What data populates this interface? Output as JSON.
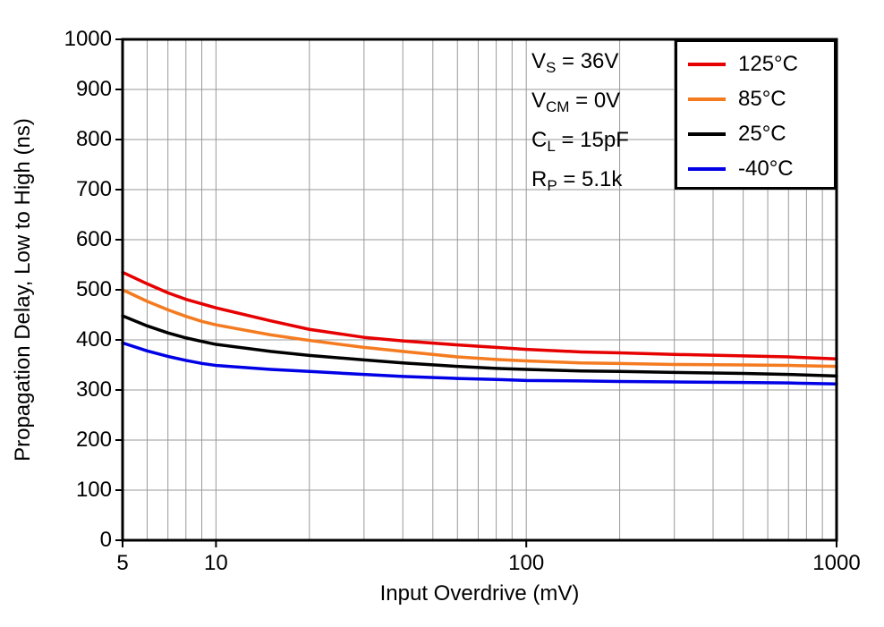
{
  "chart_data": {
    "type": "line",
    "title": "",
    "xlabel": "Input Overdrive (mV)",
    "ylabel": "Propagation Delay, Low to High (ns)",
    "xscale": "log",
    "yscale": "linear",
    "xlim": [
      5,
      1000
    ],
    "ylim": [
      0,
      1000
    ],
    "xticks": [
      5,
      10,
      100,
      1000
    ],
    "yticks": [
      0,
      100,
      200,
      300,
      400,
      500,
      600,
      700,
      800,
      900,
      1000
    ],
    "grid": true,
    "legend_position": "top-right",
    "x": [
      5,
      6,
      7,
      8,
      9,
      10,
      15,
      20,
      30,
      40,
      60,
      80,
      100,
      150,
      200,
      300,
      500,
      700,
      1000
    ],
    "series": [
      {
        "name": "125°C",
        "color": "#e60000",
        "values": [
          535,
          512,
          494,
          481,
          472,
          464,
          438,
          421,
          405,
          398,
          390,
          385,
          381,
          376,
          374,
          371,
          368,
          366,
          362
        ]
      },
      {
        "name": "85°C",
        "color": "#f47b20",
        "values": [
          500,
          477,
          460,
          447,
          437,
          430,
          410,
          399,
          385,
          377,
          366,
          361,
          358,
          354,
          353,
          351,
          350,
          349,
          347
        ]
      },
      {
        "name": "25°C",
        "color": "#000000",
        "values": [
          448,
          428,
          414,
          404,
          397,
          391,
          377,
          369,
          360,
          354,
          347,
          343,
          341,
          338,
          337,
          335,
          333,
          331,
          328
        ]
      },
      {
        "name": "-40°C",
        "color": "#0000e6",
        "values": [
          394,
          378,
          367,
          359,
          353,
          349,
          341,
          337,
          331,
          327,
          323,
          321,
          319,
          318,
          317,
          316,
          315,
          314,
          312
        ]
      }
    ],
    "conditions": [
      [
        {
          "t": "V"
        },
        {
          "t": "S",
          "sub": true
        },
        {
          "t": " = 36V"
        }
      ],
      [
        {
          "t": "V"
        },
        {
          "t": "CM",
          "sub": true
        },
        {
          "t": " = 0V"
        }
      ],
      [
        {
          "t": "C"
        },
        {
          "t": "L",
          "sub": true
        },
        {
          "t": " = 15pF"
        }
      ],
      [
        {
          "t": "R"
        },
        {
          "t": "P",
          "sub": true
        },
        {
          "t": " = 5.1k"
        }
      ]
    ]
  },
  "colors": {
    "background": "#ffffff",
    "axis": "#000000",
    "grid": "#999999",
    "text": "#000000"
  }
}
